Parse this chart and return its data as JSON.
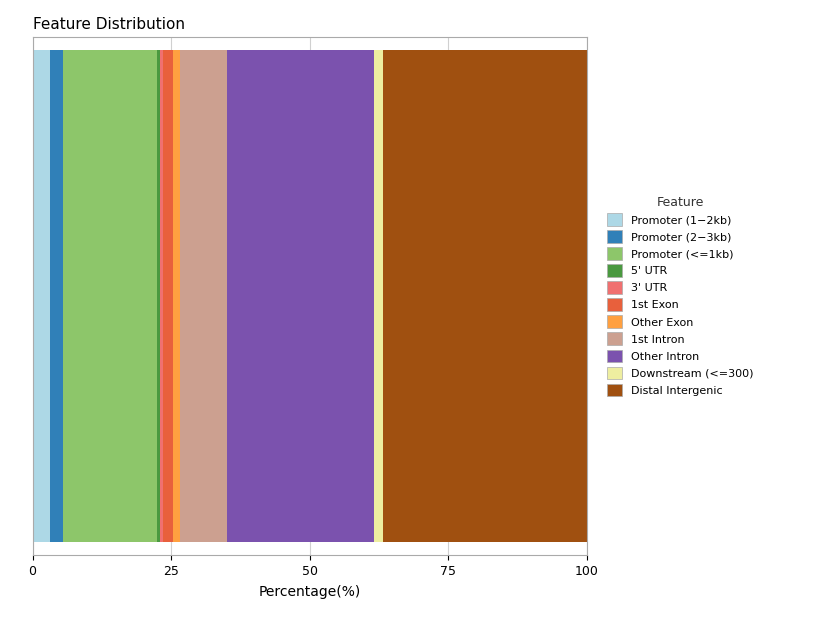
{
  "title": "Feature Distribution",
  "xlabel": "Percentage(%)",
  "features": [
    "Promoter (1−2kb)",
    "Promoter (2−3kb)",
    "Promoter (<=1kb)",
    "5' UTR",
    "3' UTR",
    "1st Exon",
    "Other Exon",
    "1st Intron",
    "Other Intron",
    "Downstream (<=300)",
    "Distal Intergenic"
  ],
  "values": [
    3.2,
    2.3,
    17.0,
    0.5,
    0.6,
    1.8,
    1.2,
    8.5,
    26.5,
    1.6,
    36.8
  ],
  "colors": [
    "#ADD8E6",
    "#3080B8",
    "#8DC66A",
    "#4A9940",
    "#F07070",
    "#E8603C",
    "#FFA040",
    "#CCA090",
    "#7B52AE",
    "#EEEEA0",
    "#A05010"
  ],
  "xlim": [
    0,
    100
  ],
  "bar_height": 0.95,
  "legend_title": "Feature",
  "background_color": "#ffffff",
  "grid_color": "#d0d0d0",
  "figsize": [
    8.15,
    6.17
  ],
  "dpi": 100
}
